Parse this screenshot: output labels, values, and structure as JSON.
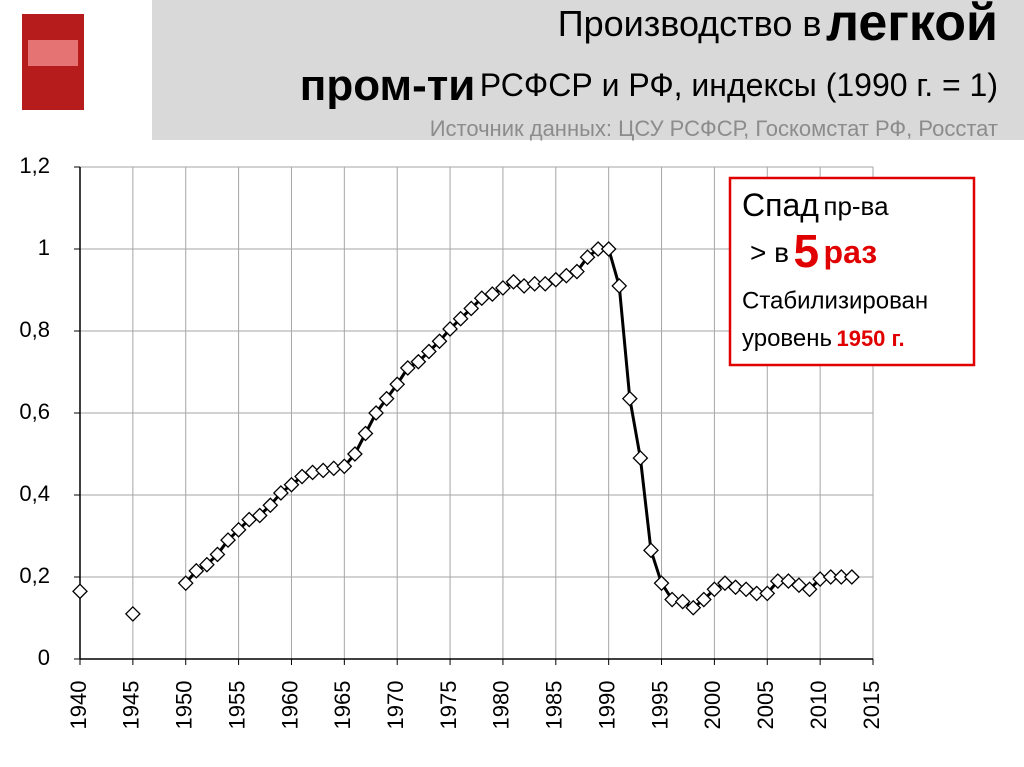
{
  "chart_data": {
    "type": "line",
    "title": [
      "Производство в",
      "легкой",
      "пром-ти",
      "РСФСР и РФ, индексы (1990 г. = 1)"
    ],
    "subtitle": "Источник данных: ЦСУ РСФСР, Госкомстат РФ, Росстат",
    "annotation": {
      "line1": [
        "Спад",
        "пр-ва"
      ],
      "line2": [
        "> в",
        "5",
        "раз"
      ],
      "line3": "Стабилизирован",
      "line4": [
        "уровень",
        "1950 г."
      ]
    },
    "x": [
      1940,
      1941,
      1942,
      1943,
      1944,
      1945,
      1946,
      1947,
      1948,
      1949,
      1950,
      1951,
      1952,
      1953,
      1954,
      1955,
      1956,
      1957,
      1958,
      1959,
      1960,
      1961,
      1962,
      1963,
      1964,
      1965,
      1966,
      1967,
      1968,
      1969,
      1970,
      1971,
      1972,
      1973,
      1974,
      1975,
      1976,
      1977,
      1978,
      1979,
      1980,
      1981,
      1982,
      1983,
      1984,
      1985,
      1986,
      1987,
      1988,
      1989,
      1990,
      1991,
      1992,
      1993,
      1994,
      1995,
      1996,
      1997,
      1998,
      1999,
      2000,
      2001,
      2002,
      2003,
      2004,
      2005,
      2006,
      2007,
      2008,
      2009,
      2010,
      2011,
      2012,
      2013
    ],
    "series": [
      {
        "color": "#000000",
        "values": [
          0.165,
          null,
          null,
          null,
          null,
          0.11,
          null,
          null,
          null,
          null,
          0.185,
          0.215,
          0.23,
          0.255,
          0.29,
          0.315,
          0.34,
          0.35,
          0.375,
          0.405,
          0.425,
          0.445,
          0.455,
          0.46,
          0.465,
          0.47,
          0.5,
          0.55,
          0.6,
          0.635,
          0.67,
          0.71,
          0.725,
          0.75,
          0.775,
          0.805,
          0.83,
          0.855,
          0.88,
          0.89,
          0.905,
          0.92,
          0.91,
          0.915,
          0.915,
          0.925,
          0.935,
          0.945,
          0.98,
          1.0,
          1.0,
          0.91,
          0.635,
          0.49,
          0.265,
          0.185,
          0.145,
          0.14,
          0.125,
          0.145,
          0.17,
          0.185,
          0.175,
          0.17,
          0.16,
          0.16,
          0.19,
          0.19,
          0.18,
          0.17,
          0.195,
          0.2,
          0.2,
          0.2
        ]
      }
    ],
    "xlim": [
      1940,
      2015
    ],
    "xticks": [
      1940,
      1945,
      1950,
      1955,
      1960,
      1965,
      1970,
      1975,
      1980,
      1985,
      1990,
      1995,
      2000,
      2005,
      2010,
      2015
    ],
    "ylim": [
      0,
      1.2
    ],
    "yticks": [
      0,
      {
        "value": 0.2,
        "label": "0,2"
      },
      {
        "value": 0.4,
        "label": "0,4"
      },
      {
        "value": 0.6,
        "label": "0,6"
      },
      {
        "value": 0.8,
        "label": "0,8"
      },
      1,
      {
        "value": 1.2,
        "label": "1,2"
      }
    ],
    "grid": true
  }
}
